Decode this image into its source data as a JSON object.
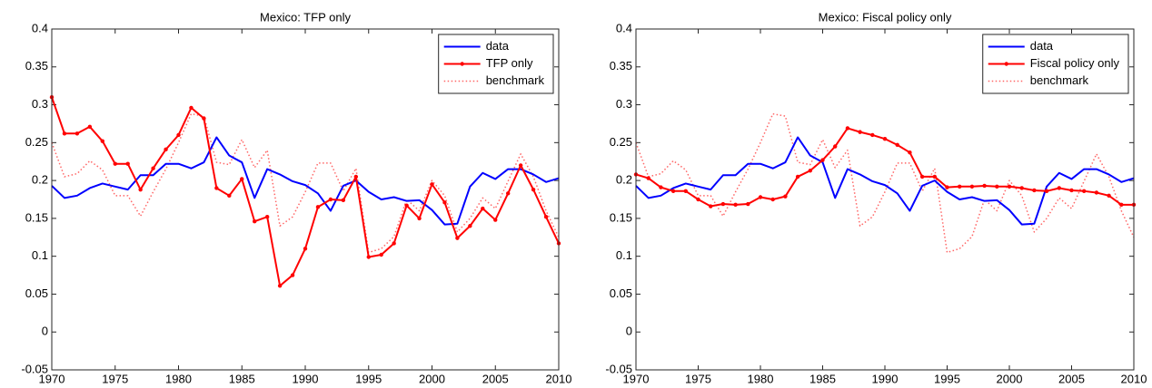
{
  "chart_data": [
    {
      "type": "line",
      "title": "Mexico: TFP only",
      "x": [
        1970,
        1971,
        1972,
        1973,
        1974,
        1975,
        1976,
        1977,
        1978,
        1979,
        1980,
        1981,
        1982,
        1983,
        1984,
        1985,
        1986,
        1987,
        1988,
        1989,
        1990,
        1991,
        1992,
        1993,
        1994,
        1995,
        1996,
        1997,
        1998,
        1999,
        2000,
        2001,
        2002,
        2003,
        2004,
        2005,
        2006,
        2007,
        2008,
        2009,
        2010
      ],
      "series": [
        {
          "name": "data",
          "color": "#0000ff",
          "linestyle": "solid",
          "values": [
            0.193,
            0.177,
            0.18,
            0.19,
            0.196,
            0.192,
            0.188,
            0.207,
            0.207,
            0.222,
            0.222,
            0.216,
            0.224,
            0.257,
            0.233,
            0.224,
            0.177,
            0.215,
            0.208,
            0.199,
            0.194,
            0.183,
            0.16,
            0.193,
            0.2,
            0.185,
            0.175,
            0.178,
            0.173,
            0.174,
            0.161,
            0.142,
            0.143,
            0.192,
            0.21,
            0.202,
            0.215,
            0.215,
            0.208,
            0.198,
            0.203
          ]
        },
        {
          "name": "TFP only",
          "color": "#ff0000",
          "linestyle": "solid",
          "marker": "dot",
          "values": [
            0.31,
            0.262,
            0.262,
            0.271,
            0.252,
            0.222,
            0.222,
            0.188,
            0.216,
            0.241,
            0.26,
            0.296,
            0.282,
            0.19,
            0.18,
            0.202,
            0.146,
            0.152,
            0.061,
            0.075,
            0.11,
            0.165,
            0.175,
            0.174,
            0.205,
            0.099,
            0.102,
            0.117,
            0.167,
            0.15,
            0.195,
            0.171,
            0.124,
            0.14,
            0.163,
            0.148,
            0.183,
            0.22,
            0.188,
            0.152,
            0.117
          ]
        },
        {
          "name": "benchmark",
          "color": "#ff6666",
          "linestyle": "dotted",
          "values": [
            0.25,
            0.205,
            0.209,
            0.226,
            0.214,
            0.18,
            0.18,
            0.153,
            0.185,
            0.215,
            0.25,
            0.288,
            0.285,
            0.224,
            0.221,
            0.254,
            0.217,
            0.24,
            0.14,
            0.152,
            0.185,
            0.223,
            0.223,
            0.186,
            0.216,
            0.105,
            0.11,
            0.126,
            0.175,
            0.16,
            0.2,
            0.18,
            0.132,
            0.15,
            0.177,
            0.163,
            0.199,
            0.235,
            0.205,
            0.16,
            0.125
          ]
        }
      ],
      "xlim": [
        1970,
        2010
      ],
      "xticks": [
        1970,
        1975,
        1980,
        1985,
        1990,
        1995,
        2000,
        2005,
        2010
      ],
      "ylim": [
        -0.05,
        0.4
      ],
      "yticks": [
        -0.05,
        0,
        0.05,
        0.1,
        0.15,
        0.2,
        0.25,
        0.3,
        0.35,
        0.4
      ],
      "legend": "northeast"
    },
    {
      "type": "line",
      "title": "Mexico: Fiscal policy only",
      "x": [
        1970,
        1971,
        1972,
        1973,
        1974,
        1975,
        1976,
        1977,
        1978,
        1979,
        1980,
        1981,
        1982,
        1983,
        1984,
        1985,
        1986,
        1987,
        1988,
        1989,
        1990,
        1991,
        1992,
        1993,
        1994,
        1995,
        1996,
        1997,
        1998,
        1999,
        2000,
        2001,
        2002,
        2003,
        2004,
        2005,
        2006,
        2007,
        2008,
        2009,
        2010
      ],
      "series": [
        {
          "name": "data",
          "color": "#0000ff",
          "linestyle": "solid",
          "values": [
            0.193,
            0.177,
            0.18,
            0.19,
            0.196,
            0.192,
            0.188,
            0.207,
            0.207,
            0.222,
            0.222,
            0.216,
            0.224,
            0.257,
            0.233,
            0.224,
            0.177,
            0.215,
            0.208,
            0.199,
            0.194,
            0.183,
            0.16,
            0.193,
            0.2,
            0.185,
            0.175,
            0.178,
            0.173,
            0.174,
            0.161,
            0.142,
            0.143,
            0.192,
            0.21,
            0.202,
            0.215,
            0.215,
            0.208,
            0.198,
            0.203
          ]
        },
        {
          "name": "Fiscal policy only",
          "color": "#ff0000",
          "linestyle": "solid",
          "marker": "dot",
          "values": [
            0.208,
            0.203,
            0.191,
            0.186,
            0.186,
            0.175,
            0.166,
            0.169,
            0.168,
            0.169,
            0.178,
            0.175,
            0.179,
            0.205,
            0.213,
            0.227,
            0.245,
            0.269,
            0.264,
            0.26,
            0.255,
            0.247,
            0.237,
            0.205,
            0.205,
            0.191,
            0.192,
            0.192,
            0.193,
            0.192,
            0.192,
            0.19,
            0.187,
            0.186,
            0.19,
            0.187,
            0.186,
            0.184,
            0.18,
            0.168,
            0.168
          ]
        },
        {
          "name": "benchmark",
          "color": "#ff6666",
          "linestyle": "dotted",
          "values": [
            0.25,
            0.205,
            0.209,
            0.226,
            0.214,
            0.18,
            0.18,
            0.153,
            0.185,
            0.215,
            0.25,
            0.288,
            0.285,
            0.224,
            0.221,
            0.254,
            0.217,
            0.24,
            0.14,
            0.152,
            0.185,
            0.223,
            0.223,
            0.186,
            0.216,
            0.105,
            0.11,
            0.126,
            0.175,
            0.16,
            0.2,
            0.18,
            0.132,
            0.15,
            0.177,
            0.163,
            0.199,
            0.235,
            0.205,
            0.16,
            0.125
          ]
        }
      ],
      "xlim": [
        1970,
        2010
      ],
      "xticks": [
        1970,
        1975,
        1980,
        1985,
        1990,
        1995,
        2000,
        2005,
        2010
      ],
      "ylim": [
        -0.05,
        0.4
      ],
      "yticks": [
        -0.05,
        0,
        0.05,
        0.1,
        0.15,
        0.2,
        0.25,
        0.3,
        0.35,
        0.4
      ],
      "legend": "northeast"
    }
  ]
}
